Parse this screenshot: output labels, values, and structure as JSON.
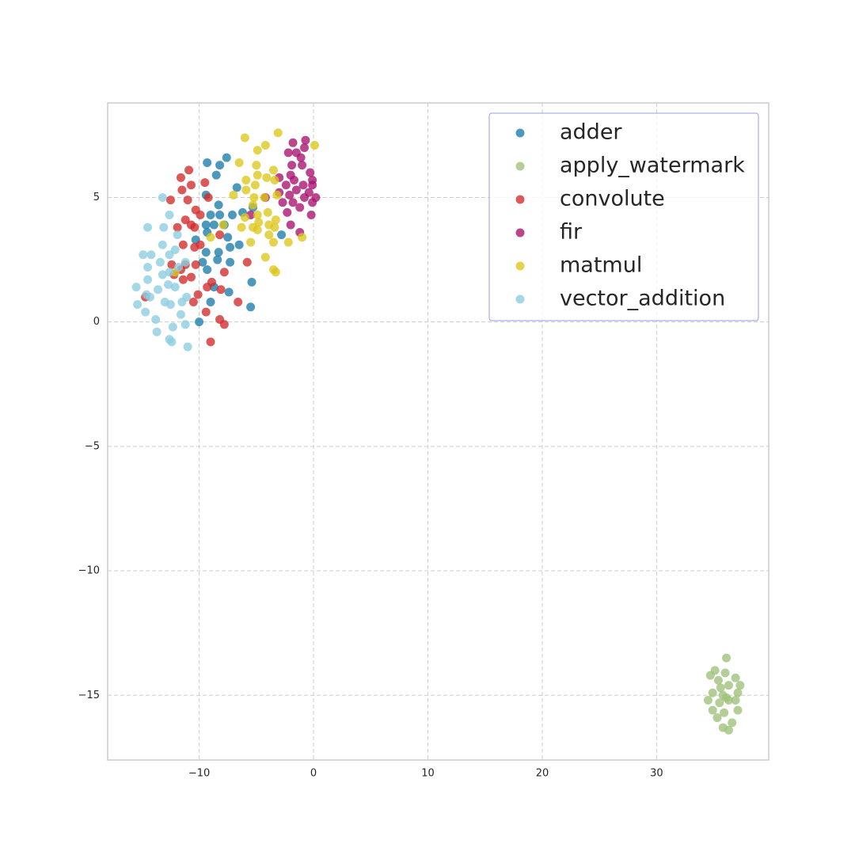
{
  "chart_data": {
    "type": "scatter",
    "xlim": [
      -18,
      39.8
    ],
    "ylim": [
      -17.6,
      8.8
    ],
    "xticks": [
      {
        "value": -10,
        "label": "−10"
      },
      0,
      10,
      20,
      30
    ],
    "yticks": [
      {
        "value": -15,
        "label": "−15"
      },
      {
        "value": -10,
        "label": "−10"
      },
      {
        "value": -5,
        "label": "−5"
      },
      0,
      5
    ],
    "grid": true,
    "legend": "upper right",
    "series": [
      {
        "name": "adder",
        "color": "#1b7bab",
        "x": [
          -9.3,
          -8.2,
          -7.6,
          -8.5,
          -6.7,
          -9.4,
          -8.3,
          -7.1,
          -9.0,
          -8.2,
          -9.4,
          -8.7,
          -7.8,
          -9.3,
          -7.5,
          -6.5,
          -8.3,
          -7.3,
          -9.4,
          -10.3,
          -9.7,
          -8.4,
          -7.3,
          -9.3,
          -8.7,
          -5.4,
          -7.4,
          -9.0,
          -5.5,
          -10.0,
          -2.8,
          -6.2,
          -5.3
        ],
        "values": [
          6.4,
          6.3,
          6.6,
          5.9,
          5.4,
          5.1,
          4.7,
          4.3,
          4.3,
          4.3,
          3.9,
          3.9,
          3.9,
          3.6,
          3.4,
          3.1,
          2.8,
          3.0,
          2.8,
          3.3,
          2.4,
          2.5,
          2.4,
          2.1,
          1.4,
          1.6,
          1.2,
          0.8,
          0.6,
          0.0,
          3.5,
          4.4,
          4.6
        ]
      },
      {
        "name": "apply_watermark",
        "color": "#9dc27a",
        "x": [
          36.1,
          35.1,
          34.7,
          36.0,
          36.9,
          37.3,
          35.4,
          36.3,
          34.9,
          35.8,
          37.1,
          34.5,
          36.3,
          35.5,
          36.9,
          34.9,
          35.9,
          37.1,
          35.3,
          36.6,
          35.8,
          36.3,
          35.6,
          36.1
        ],
        "values": [
          -13.5,
          -14.0,
          -14.2,
          -14.1,
          -14.3,
          -14.6,
          -14.4,
          -14.6,
          -14.9,
          -15.0,
          -14.9,
          -15.2,
          -15.2,
          -15.3,
          -15.2,
          -15.6,
          -15.7,
          -15.6,
          -15.9,
          -16.1,
          -16.3,
          -16.4,
          -14.7,
          -15.1
        ]
      },
      {
        "name": "convolute",
        "color": "#d12a2a",
        "x": [
          -10.9,
          -11.6,
          -10.7,
          -11.5,
          -12.5,
          -11.0,
          -9.5,
          -10.3,
          -11.2,
          -9.9,
          -10.7,
          -11.9,
          -10.4,
          -9.2,
          -11.4,
          -10.4,
          -9.9,
          -12.4,
          -11.2,
          -10.3,
          -11.6,
          -12.2,
          -10.7,
          -11.4,
          -9.3,
          -8.9,
          -10.1,
          -10.5,
          -14.7,
          -9.4,
          -8.2,
          -7.8,
          -9.0,
          -6.6,
          -7.8,
          -8.2,
          -5.8,
          -8.1
        ],
        "values": [
          6.1,
          5.8,
          5.5,
          5.3,
          4.9,
          4.9,
          5.6,
          4.5,
          4.1,
          4.3,
          3.9,
          3.8,
          3.8,
          5.0,
          3.1,
          3.0,
          3.1,
          2.3,
          2.3,
          2.3,
          2.1,
          1.9,
          1.8,
          1.7,
          1.4,
          1.6,
          1.1,
          0.8,
          1.0,
          0.4,
          0.1,
          -0.1,
          -0.8,
          0.8,
          2.0,
          3.5,
          2.4,
          1.3
        ]
      },
      {
        "name": "fir",
        "color": "#a8126e",
        "x": [
          -2.2,
          -1.8,
          -0.7,
          -1.5,
          -0.8,
          -1.1,
          -1.0,
          -1.9,
          -2.0,
          -0.3,
          -3.0,
          -1.7,
          -0.1,
          -2.4,
          -0.9,
          -1.5,
          -0.1,
          -0.4,
          -3.0,
          -2.1,
          -0.8,
          0.2,
          -2.7,
          -1.8,
          -1.2,
          -0.1,
          -2.3,
          -0.2,
          -5.5,
          -2.0,
          -1.2,
          -4.2
        ],
        "values": [
          6.8,
          7.2,
          7.3,
          6.8,
          7.0,
          6.6,
          6.3,
          6.3,
          5.9,
          6.0,
          5.8,
          5.7,
          5.7,
          5.5,
          5.5,
          5.3,
          5.5,
          5.2,
          5.2,
          5.1,
          5.0,
          5.0,
          4.8,
          4.8,
          4.6,
          4.8,
          4.4,
          4.3,
          4.3,
          3.9,
          3.6,
          5.0
        ]
      },
      {
        "name": "matmul",
        "color": "#dcc71a",
        "x": [
          -3.1,
          -6.0,
          -4.2,
          0.1,
          -4.9,
          -6.5,
          -5.0,
          -3.5,
          -4.9,
          -5.9,
          -4.1,
          -5.1,
          -3.4,
          -7.0,
          -5.9,
          -5.2,
          -4.3,
          -3.2,
          -5.3,
          -4.0,
          -4.9,
          -6.0,
          -4.8,
          -3.3,
          -6.3,
          -5.3,
          -3.9,
          -3.4,
          -4.9,
          -3.9,
          -1.0,
          -5.5,
          -3.5,
          -2.2,
          -4.2,
          -3.5,
          -3.3,
          -7.9,
          -9.0,
          -12.1
        ],
        "values": [
          7.6,
          7.4,
          7.1,
          7.1,
          6.9,
          6.4,
          6.3,
          6.1,
          5.9,
          5.7,
          5.8,
          5.5,
          5.7,
          5.1,
          5.3,
          5.0,
          5.0,
          5.1,
          4.7,
          4.4,
          4.3,
          4.2,
          4.0,
          4.1,
          3.8,
          3.8,
          3.9,
          3.8,
          3.7,
          3.5,
          3.4,
          3.2,
          3.2,
          3.2,
          2.6,
          2.1,
          2.0,
          3.9,
          3.4,
          2.0
        ]
      },
      {
        "name": "vector_addition",
        "color": "#8ccde0",
        "x": [
          -13.2,
          -12.6,
          -14.5,
          -13.1,
          -11.9,
          -13.2,
          -12.1,
          -14.9,
          -14.2,
          -12.6,
          -13.4,
          -14.5,
          -11.2,
          -11.8,
          -13.2,
          -12.6,
          -14.5,
          -15.5,
          -13.6,
          -12.7,
          -12.1,
          -14.6,
          -14.3,
          -11.1,
          -13.0,
          -11.5,
          -12.5,
          -15.4,
          -14.7,
          -11.6,
          -13.8,
          -11.2,
          -12.3,
          -13.7,
          -12.6,
          -12.4,
          -11.0
        ],
        "values": [
          5.0,
          4.3,
          3.8,
          3.8,
          3.5,
          3.1,
          2.9,
          2.7,
          2.7,
          2.7,
          2.4,
          2.2,
          2.4,
          2.2,
          1.9,
          2.0,
          1.7,
          1.4,
          1.3,
          1.5,
          1.4,
          1.1,
          1.0,
          1.0,
          0.8,
          0.8,
          0.7,
          0.7,
          0.4,
          0.3,
          0.1,
          -0.1,
          -0.2,
          -0.4,
          -0.7,
          -0.8,
          -1.0
        ]
      }
    ]
  }
}
